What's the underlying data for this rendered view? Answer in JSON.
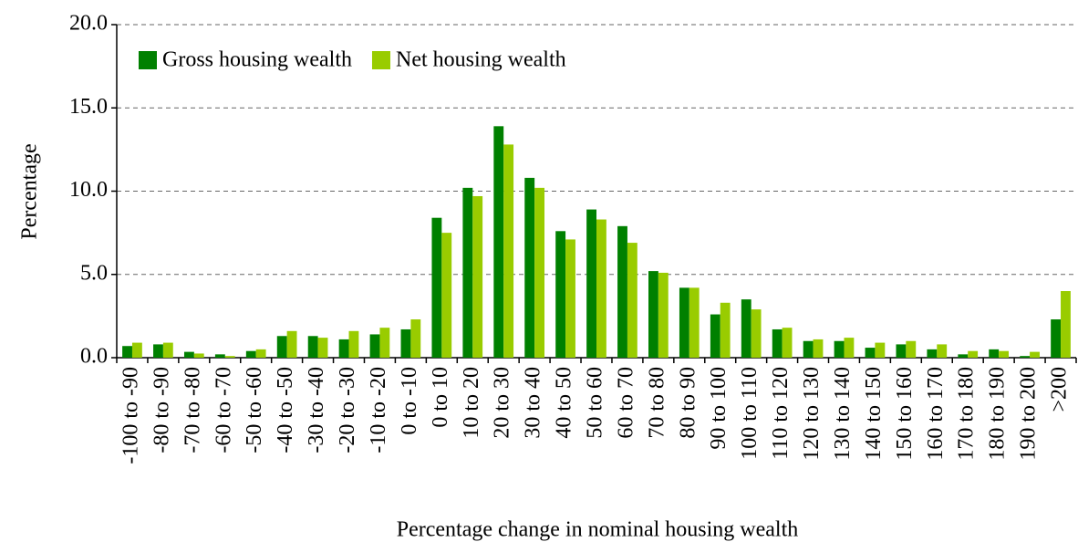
{
  "chart_data": {
    "type": "bar",
    "x_label": "Percentage change in nominal housing wealth",
    "y_label": "Percentage",
    "categories": [
      "-100 to -90",
      "-80 to -90",
      "-70 to -80",
      "-60 to -70",
      "-50 to -60",
      "-40 to -50",
      "-30 to -40",
      "-20 to -30",
      "-10 to -20",
      "0 to -10",
      "0 to 10",
      "10 to 20",
      "20 to 30",
      "30 to 40",
      "40 to 50",
      "50 to 60",
      "60 to 70",
      "70 to 80",
      "80 to 90",
      "90 to 100",
      "100 to 110",
      "110 to 120",
      "120 to 130",
      "130 to 140",
      "140 to 150",
      "150 to 160",
      "160 to 170",
      "170 to 180",
      "180 to 190",
      "190 to 200",
      ">200"
    ],
    "series": [
      {
        "name": "Gross housing wealth",
        "color": "#008000",
        "values": [
          0.7,
          0.8,
          0.35,
          0.2,
          0.4,
          1.3,
          1.3,
          1.1,
          1.4,
          1.7,
          8.4,
          10.2,
          13.9,
          10.8,
          7.6,
          8.9,
          7.9,
          5.2,
          4.2,
          2.6,
          3.5,
          1.7,
          1.0,
          1.0,
          0.6,
          0.8,
          0.5,
          0.2,
          0.5,
          0.1,
          2.3
        ]
      },
      {
        "name": "Net housing wealth",
        "color": "#99cc00",
        "values": [
          0.9,
          0.9,
          0.25,
          0.1,
          0.5,
          1.6,
          1.2,
          1.6,
          1.8,
          2.3,
          7.5,
          9.7,
          12.8,
          10.2,
          7.1,
          8.3,
          6.9,
          5.1,
          4.2,
          3.3,
          2.9,
          1.8,
          1.1,
          1.2,
          0.9,
          1.0,
          0.8,
          0.4,
          0.4,
          0.35,
          4.0
        ]
      }
    ],
    "ylim": [
      0,
      20
    ],
    "yticks": [
      {
        "value": 0,
        "label": "0.0"
      },
      {
        "value": 5,
        "label": "5.0"
      },
      {
        "value": 10,
        "label": "10.0"
      },
      {
        "value": 15,
        "label": "15.0"
      },
      {
        "value": 20,
        "label": "20.0"
      }
    ],
    "grid": true,
    "legend": "top-left"
  }
}
